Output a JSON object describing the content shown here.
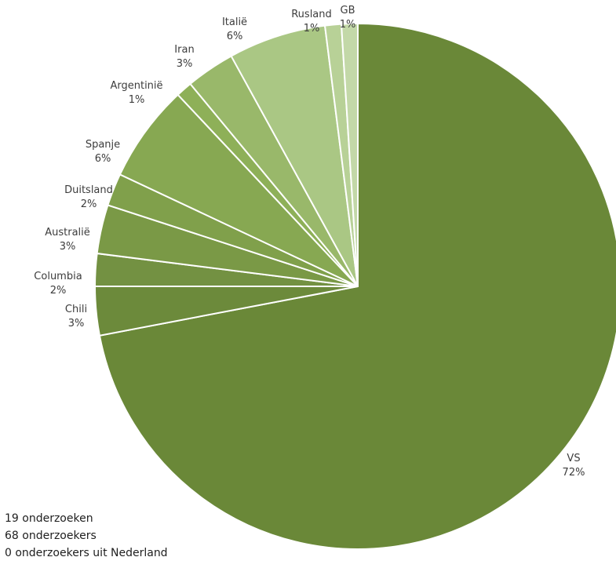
{
  "chart_data": {
    "type": "pie",
    "title": "",
    "slices": [
      {
        "label": "VS",
        "value": 72,
        "display": "72%",
        "color": "#6a8838"
      },
      {
        "label": "Chili",
        "value": 3,
        "display": "3%",
        "color": "#6c8a3b"
      },
      {
        "label": "Columbia",
        "value": 2,
        "display": "2%",
        "color": "#739142"
      },
      {
        "label": "Australië",
        "value": 3,
        "display": "3%",
        "color": "#7a9946"
      },
      {
        "label": "Duitsland",
        "value": 2,
        "display": "2%",
        "color": "#80a04b"
      },
      {
        "label": "Spanje",
        "value": 6,
        "display": "6%",
        "color": "#87a852"
      },
      {
        "label": "Argentinië",
        "value": 1,
        "display": "1%",
        "color": "#8eb058"
      },
      {
        "label": "Iran",
        "value": 3,
        "display": "3%",
        "color": "#99b86a"
      },
      {
        "label": "Italië",
        "value": 6,
        "display": "6%",
        "color": "#aac784"
      },
      {
        "label": "Rusland",
        "value": 1,
        "display": "1%",
        "color": "#b8d197"
      },
      {
        "label": "GB",
        "value": 1,
        "display": "1%",
        "color": "#c3d8a8"
      }
    ]
  },
  "notes": {
    "line1": "19 onderzoeken",
    "line2": "68 onderzoekers",
    "line3": "0 onderzoekers uit Nederland"
  }
}
